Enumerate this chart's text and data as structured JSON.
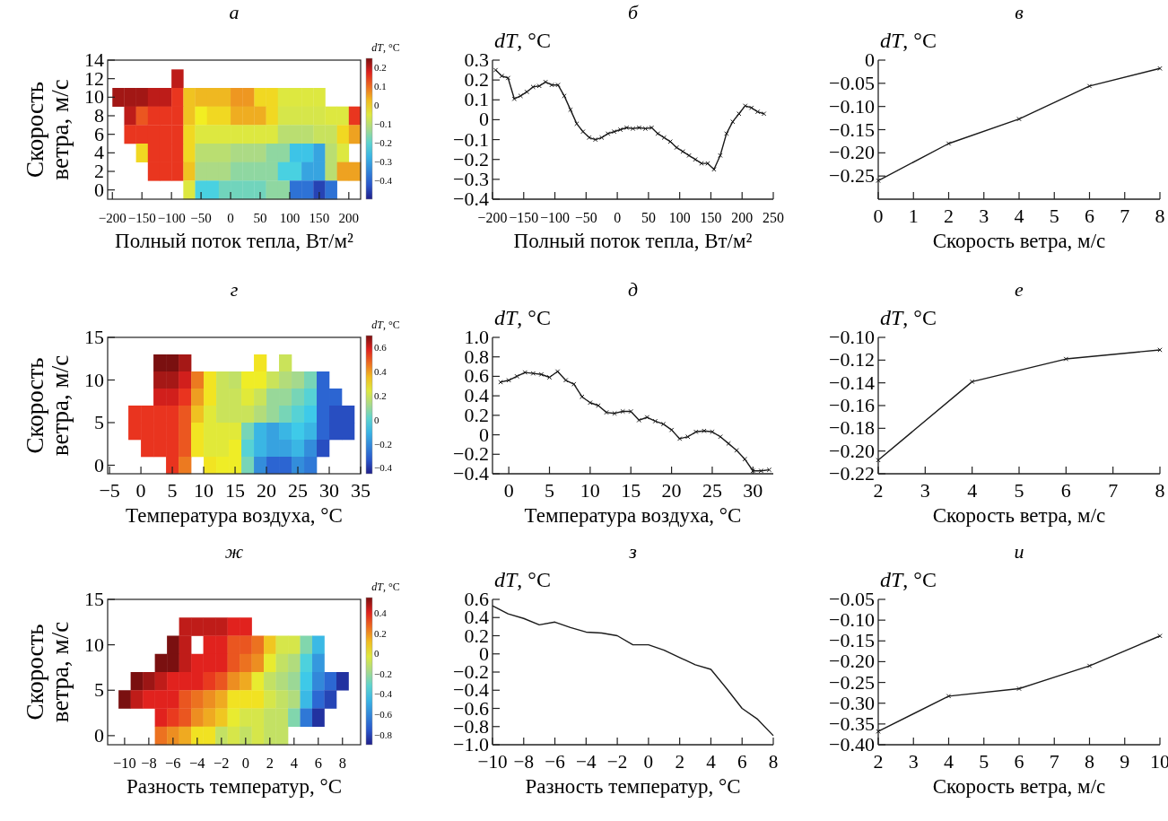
{
  "chart_data": [
    {
      "type": "heatmap",
      "title": "а",
      "xlabel": "Полный поток тепла, Вт/м²",
      "ylabel": "Скорость ветра, м/с",
      "clabel": "dT, °C",
      "x": [
        -190,
        -170,
        -150,
        -130,
        -110,
        -90,
        -70,
        -50,
        -30,
        -10,
        10,
        30,
        50,
        70,
        90,
        110,
        130,
        150,
        170,
        190,
        210
      ],
      "y": [
        12,
        10,
        8,
        6,
        4,
        2,
        0
      ],
      "cells": [
        [
          null,
          null,
          null,
          null,
          null,
          0.2,
          null,
          null,
          null,
          null,
          null,
          null,
          null,
          null,
          null,
          null,
          null,
          null,
          null,
          null,
          null
        ],
        [
          0.22,
          0.22,
          0.22,
          0.2,
          0.2,
          0.15,
          0.02,
          0.03,
          0.03,
          0.03,
          0.06,
          0.06,
          0,
          0,
          -0.05,
          -0.05,
          -0.05,
          -0.05,
          null,
          null,
          null
        ],
        [
          null,
          0.2,
          0.12,
          0.15,
          0.15,
          0.15,
          0.02,
          -0.02,
          0,
          0,
          0.04,
          0.04,
          0.04,
          0,
          -0.06,
          -0.06,
          -0.06,
          -0.06,
          -0.05,
          -0.05,
          0.15
        ],
        [
          null,
          0.15,
          0.15,
          0.15,
          0.15,
          0.15,
          0,
          -0.05,
          -0.05,
          -0.05,
          -0.05,
          -0.05,
          -0.05,
          -0.05,
          -0.1,
          -0.1,
          -0.1,
          -0.08,
          -0.08,
          0,
          0.05
        ],
        [
          null,
          null,
          0,
          0.15,
          0.15,
          0.15,
          0,
          -0.1,
          -0.1,
          -0.1,
          -0.12,
          -0.12,
          -0.12,
          -0.15,
          -0.15,
          -0.25,
          -0.25,
          -0.3,
          -0.1,
          -0.05,
          null
        ],
        [
          null,
          null,
          null,
          0.15,
          0.15,
          0.15,
          0.02,
          -0.12,
          -0.12,
          -0.12,
          -0.15,
          -0.15,
          -0.15,
          -0.15,
          -0.22,
          -0.22,
          -0.3,
          -0.3,
          -0.1,
          0.05,
          0.05
        ],
        [
          null,
          null,
          null,
          null,
          null,
          null,
          -0.05,
          -0.22,
          -0.22,
          -0.18,
          -0.18,
          -0.18,
          -0.18,
          -0.15,
          -0.15,
          -0.38,
          -0.38,
          -0.45,
          -0.38,
          null,
          null
        ]
      ],
      "xlim": [
        -208,
        220
      ],
      "xticks": [
        {
          "value": -200,
          "label": "−200"
        },
        {
          "value": -150,
          "label": "−150"
        },
        {
          "value": -100,
          "label": "−100"
        },
        {
          "value": -50,
          "label": "−50"
        },
        0,
        50,
        100,
        150,
        200
      ],
      "ylim": [
        -1,
        14
      ],
      "yticks": [
        0,
        2,
        4,
        6,
        8,
        10,
        12,
        14
      ],
      "clim": [
        -0.5,
        0.25
      ],
      "cticks": [
        0.2,
        0.1,
        0,
        {
          "value": -0.1,
          "label": "−0.1"
        },
        {
          "value": -0.2,
          "label": "−0.2"
        },
        {
          "value": -0.3,
          "label": "−0.3"
        },
        {
          "value": -0.4,
          "label": "−0.4"
        }
      ]
    },
    {
      "type": "line",
      "title": "б",
      "xlabel": "Полный поток тепла, Вт/м²",
      "ylabel": "dT, °C",
      "marker": "cross",
      "line_style": "solid",
      "x": [
        -195,
        -185,
        -175,
        -165,
        -155,
        -145,
        -135,
        -125,
        -115,
        -105,
        -95,
        -85,
        -75,
        -65,
        -55,
        -45,
        -35,
        -25,
        -15,
        -5,
        5,
        15,
        25,
        35,
        45,
        55,
        65,
        75,
        85,
        95,
        105,
        115,
        125,
        135,
        145,
        155,
        165,
        175,
        185,
        195,
        205,
        215,
        225,
        235
      ],
      "series": [
        {
          "color": "#1a1a1a",
          "values": [
            0.25,
            0.22,
            0.21,
            0.105,
            0.12,
            0.14,
            0.165,
            0.17,
            0.19,
            0.175,
            0.175,
            0.12,
            0.05,
            -0.02,
            -0.06,
            -0.09,
            -0.1,
            -0.09,
            -0.07,
            -0.06,
            -0.05,
            -0.04,
            -0.045,
            -0.04,
            -0.045,
            -0.04,
            -0.07,
            -0.09,
            -0.11,
            -0.14,
            -0.16,
            -0.18,
            -0.2,
            -0.22,
            -0.22,
            -0.25,
            -0.18,
            -0.07,
            -0.01,
            0.03,
            0.07,
            0.06,
            0.04,
            0.03
          ]
        }
      ],
      "xlim": [
        -200,
        250
      ],
      "xticks": [
        {
          "value": -200,
          "label": "−200"
        },
        {
          "value": -150,
          "label": "−150"
        },
        {
          "value": -100,
          "label": "−100"
        },
        {
          "value": -50,
          "label": "−50"
        },
        0,
        50,
        100,
        150,
        200,
        250
      ],
      "ylim": [
        -0.4,
        0.3
      ],
      "yticks": [
        {
          "value": -0.4,
          "label": "−0.4"
        },
        {
          "value": -0.3,
          "label": "−0.3"
        },
        {
          "value": -0.2,
          "label": "−0.2"
        },
        {
          "value": -0.1,
          "label": "−0.1"
        },
        0,
        0.1,
        0.2,
        0.3
      ]
    },
    {
      "type": "line",
      "title": "в",
      "xlabel": "Скорость ветра, м/с",
      "ylabel": "dT, °C",
      "marker": "cross",
      "line_style": "solid",
      "x": [
        0,
        2,
        4,
        6,
        8
      ],
      "series": [
        {
          "color": "#1a1a1a",
          "values": [
            -0.26,
            -0.18,
            -0.127,
            -0.056,
            -0.018
          ]
        }
      ],
      "xlim": [
        0,
        8
      ],
      "xticks": [
        0,
        1,
        2,
        3,
        4,
        5,
        6,
        7,
        8
      ],
      "ylim": [
        -0.3,
        0
      ],
      "yticks": [
        {
          "value": -0.25,
          "label": "−0.25"
        },
        {
          "value": -0.2,
          "label": "−0.20"
        },
        {
          "value": -0.15,
          "label": "−0.15"
        },
        {
          "value": -0.1,
          "label": "−0.10"
        },
        {
          "value": -0.05,
          "label": "−0.05"
        },
        0
      ]
    },
    {
      "type": "heatmap",
      "title": "г",
      "xlabel": "Температура воздуха, °C",
      "ylabel": "Скорость ветра, м/с",
      "clabel": "dT, °C",
      "x": [
        -1,
        1,
        3,
        5,
        7,
        9,
        11,
        13,
        15,
        17,
        19,
        21,
        23,
        25,
        27,
        29,
        31,
        33
      ],
      "y": [
        12,
        10,
        8,
        6,
        4,
        2,
        0
      ],
      "cells": [
        [
          null,
          null,
          0.7,
          0.7,
          0.65,
          null,
          null,
          null,
          null,
          null,
          0.3,
          null,
          0.2,
          null,
          null,
          null,
          null,
          null
        ],
        [
          null,
          null,
          0.65,
          0.65,
          0.6,
          0.45,
          0.3,
          0.2,
          0.18,
          0.28,
          0.28,
          0.2,
          0.15,
          0.12,
          0.05,
          -0.3,
          null,
          null
        ],
        [
          null,
          null,
          0.6,
          0.6,
          0.55,
          0.4,
          0.3,
          0.2,
          0.2,
          0.25,
          0.2,
          0.1,
          0.1,
          0.05,
          0,
          -0.3,
          -0.3,
          null
        ],
        [
          0.55,
          0.55,
          0.55,
          0.55,
          0.5,
          0.35,
          0.25,
          0.2,
          0.2,
          0.2,
          0.15,
          0.1,
          0.05,
          0,
          -0.05,
          -0.3,
          -0.35,
          -0.35
        ],
        [
          0.55,
          0.55,
          0.55,
          0.55,
          0.5,
          0.3,
          0.25,
          0.25,
          0.25,
          0.05,
          -0.1,
          -0.15,
          -0.1,
          -0.05,
          -0.1,
          -0.3,
          -0.35,
          -0.35
        ],
        [
          null,
          0.55,
          0.55,
          0.55,
          0.5,
          0.3,
          0.25,
          0.25,
          0.28,
          0,
          -0.1,
          -0.15,
          -0.15,
          -0.1,
          -0.2,
          -0.35,
          null,
          null
        ],
        [
          null,
          null,
          null,
          0.55,
          0.45,
          null,
          0.3,
          0.28,
          0.28,
          0.05,
          -0.2,
          -0.3,
          -0.3,
          -0.2,
          -0.25,
          null,
          null,
          null
        ]
      ],
      "xlim": [
        -5.3,
        35
      ],
      "xticks": [
        {
          "value": -5,
          "label": "−5"
        },
        0,
        5,
        10,
        15,
        20,
        25,
        30,
        35
      ],
      "ylim": [
        -1,
        15
      ],
      "yticks": [
        0,
        5,
        10,
        15
      ],
      "clim": [
        -0.45,
        0.7
      ],
      "cticks": [
        0.6,
        0.4,
        0.2,
        0,
        {
          "value": -0.2,
          "label": "−0.2"
        },
        {
          "value": -0.4,
          "label": "−0.4"
        }
      ]
    },
    {
      "type": "line",
      "title": "д",
      "xlabel": "Температура воздуха, °C",
      "ylabel": "dT, °C",
      "marker": "cross",
      "line_style": "solid",
      "x": [
        -1,
        0,
        1,
        2,
        3,
        4,
        5,
        6,
        7,
        8,
        9,
        10,
        11,
        12,
        13,
        14,
        15,
        16,
        17,
        18,
        19,
        20,
        21,
        22,
        23,
        24,
        25,
        26,
        27,
        28,
        29,
        30,
        31,
        32
      ],
      "series": [
        {
          "color": "#1a1a1a",
          "values": [
            0.54,
            0.56,
            0.6,
            0.64,
            0.63,
            0.62,
            0.59,
            0.65,
            0.56,
            0.52,
            0.39,
            0.33,
            0.3,
            0.23,
            0.22,
            0.24,
            0.24,
            0.15,
            0.18,
            0.14,
            0.11,
            0.05,
            -0.04,
            -0.02,
            0.03,
            0.04,
            0.03,
            -0.02,
            -0.09,
            -0.16,
            -0.25,
            -0.37,
            -0.37,
            -0.36
          ]
        }
      ],
      "xlim": [
        -2,
        32.5
      ],
      "xticks": [
        0,
        5,
        10,
        15,
        20,
        25,
        30
      ],
      "ylim": [
        -0.4,
        1.0
      ],
      "yticks": [
        {
          "value": -0.4,
          "label": "−0.4"
        },
        {
          "value": -0.2,
          "label": "−0.2"
        },
        0,
        0.2,
        0.4,
        0.6,
        0.8,
        {
          "value": 1,
          "label": "1.0"
        }
      ]
    },
    {
      "type": "line",
      "title": "е",
      "xlabel": "Скорость ветра, м/с",
      "ylabel": "dT, °C",
      "marker": "cross",
      "line_style": "solid",
      "x": [
        2,
        4,
        6,
        8
      ],
      "series": [
        {
          "color": "#1a1a1a",
          "values": [
            -0.208,
            -0.139,
            -0.119,
            -0.111
          ]
        }
      ],
      "xlim": [
        2,
        8
      ],
      "xticks": [
        2,
        3,
        4,
        5,
        6,
        7,
        8
      ],
      "ylim": [
        -0.22,
        -0.1
      ],
      "yticks": [
        {
          "value": -0.22,
          "label": "−0.22"
        },
        {
          "value": -0.2,
          "label": "−0.20"
        },
        {
          "value": -0.18,
          "label": "−0.18"
        },
        {
          "value": -0.16,
          "label": "−0.16"
        },
        {
          "value": -0.14,
          "label": "−0.14"
        },
        {
          "value": -0.12,
          "label": "−0.12"
        },
        {
          "value": -0.1,
          "label": "−0.10"
        }
      ]
    },
    {
      "type": "heatmap",
      "title": "ж",
      "xlabel": "Разность температур, °C",
      "ylabel": "Скорость ветра, м/с",
      "clabel": "dT, °C",
      "x": [
        -10,
        -9,
        -8,
        -7,
        -6,
        -5,
        -4,
        -3,
        -2,
        -1,
        0,
        1,
        2,
        3,
        4,
        5,
        6,
        7,
        8
      ],
      "y": [
        12,
        10,
        8,
        6,
        4,
        2,
        0
      ],
      "cells": [
        [
          null,
          null,
          null,
          null,
          null,
          0.45,
          0.45,
          0.45,
          0.45,
          0.4,
          0.4,
          null,
          null,
          null,
          null,
          null,
          null,
          null,
          null
        ],
        [
          null,
          null,
          null,
          null,
          0.6,
          0.45,
          null,
          0.4,
          0.4,
          0.3,
          0.3,
          0.25,
          0.1,
          -0.05,
          -0.05,
          -0.25,
          -0.45,
          null,
          null
        ],
        [
          null,
          null,
          null,
          0.55,
          0.55,
          0.45,
          0.4,
          0.4,
          0.4,
          0.3,
          0.25,
          0.2,
          0,
          -0.1,
          -0.15,
          -0.35,
          -0.55,
          null,
          null
        ],
        [
          null,
          0.55,
          0.5,
          0.45,
          0.4,
          0.4,
          0.4,
          0.35,
          0.3,
          0.2,
          0.15,
          0,
          -0.1,
          -0.15,
          -0.2,
          -0.4,
          -0.6,
          -0.7,
          -0.85
        ],
        [
          0.6,
          0.45,
          0.4,
          0.4,
          0.4,
          0.3,
          0.25,
          0.2,
          0.15,
          0.05,
          0.05,
          0.05,
          -0.05,
          -0.1,
          -0.15,
          -0.45,
          -0.7,
          -0.8,
          null
        ],
        [
          null,
          null,
          null,
          0.4,
          0.35,
          0.3,
          0.2,
          0.15,
          0.1,
          0,
          -0.05,
          -0.05,
          -0.1,
          -0.1,
          -0.25,
          -0.65,
          -0.85,
          null,
          null
        ],
        [
          null,
          null,
          null,
          0.25,
          0.2,
          0.15,
          0.05,
          0.05,
          -0.1,
          -0.05,
          -0.1,
          -0.05,
          -0.1,
          -0.1,
          null,
          null,
          null,
          null,
          null
        ]
      ],
      "xlim": [
        -11.4,
        9.5
      ],
      "xticks": [
        {
          "value": -10,
          "label": "−10"
        },
        {
          "value": -8,
          "label": "−8"
        },
        {
          "value": -6,
          "label": "−6"
        },
        {
          "value": -4,
          "label": "−4"
        },
        {
          "value": -2,
          "label": "−2"
        },
        0,
        2,
        4,
        6,
        8
      ],
      "ylim": [
        -1,
        15
      ],
      "yticks": [
        0,
        5,
        10,
        15
      ],
      "clim": [
        -0.9,
        0.55
      ],
      "cticks": [
        0.4,
        0.2,
        0,
        {
          "value": -0.2,
          "label": "−0.2"
        },
        {
          "value": -0.4,
          "label": "−0.4"
        },
        {
          "value": -0.6,
          "label": "−0.6"
        },
        {
          "value": -0.8,
          "label": "−0.8"
        }
      ]
    },
    {
      "type": "line",
      "title": "з",
      "xlabel": "Разность температур, °C",
      "ylabel": "dT, °C",
      "marker": "none",
      "line_style": "solid",
      "x": [
        -10,
        -9,
        -8,
        -7,
        -6,
        -5,
        -4,
        -3,
        -2,
        -1,
        0,
        1,
        2,
        3,
        4,
        5,
        6,
        7,
        8
      ],
      "series": [
        {
          "color": "#1a1a1a",
          "values": [
            0.53,
            0.44,
            0.39,
            0.32,
            0.35,
            0.29,
            0.24,
            0.23,
            0.2,
            0.1,
            0.1,
            0.04,
            -0.04,
            -0.12,
            -0.17,
            -0.38,
            -0.6,
            -0.72,
            -0.9
          ]
        }
      ],
      "xlim": [
        -10,
        8
      ],
      "xticks": [
        {
          "value": -10,
          "label": "−10"
        },
        {
          "value": -8,
          "label": "−8"
        },
        {
          "value": -6,
          "label": "−6"
        },
        {
          "value": -4,
          "label": "−4"
        },
        {
          "value": -2,
          "label": "−2"
        },
        0,
        2,
        4,
        6,
        8
      ],
      "ylim": [
        -1,
        0.6
      ],
      "yticks": [
        {
          "value": -1,
          "label": "−1.0"
        },
        {
          "value": -0.8,
          "label": "−0.8"
        },
        {
          "value": -0.6,
          "label": "−0.6"
        },
        {
          "value": -0.4,
          "label": "−0.4"
        },
        {
          "value": -0.2,
          "label": "−0.2"
        },
        0,
        0.2,
        0.4,
        0.6
      ]
    },
    {
      "type": "line",
      "title": "и",
      "xlabel": "Скорость ветра, м/с",
      "ylabel": "dT, °C",
      "marker": "cross",
      "line_style": "solid",
      "x": [
        2,
        4,
        6,
        8,
        10
      ],
      "series": [
        {
          "color": "#1a1a1a",
          "values": [
            -0.368,
            -0.283,
            -0.265,
            -0.21,
            -0.138
          ]
        }
      ],
      "xlim": [
        2,
        10
      ],
      "xticks": [
        2,
        3,
        4,
        5,
        6,
        7,
        8,
        9,
        10
      ],
      "ylim": [
        -0.4,
        -0.05
      ],
      "yticks": [
        {
          "value": -0.4,
          "label": "−0.40"
        },
        {
          "value": -0.35,
          "label": "−0.35"
        },
        {
          "value": -0.3,
          "label": "−0.30"
        },
        {
          "value": -0.25,
          "label": "−0.25"
        },
        {
          "value": -0.2,
          "label": "−0.20"
        },
        {
          "value": -0.15,
          "label": "−0.15"
        },
        {
          "value": -0.1,
          "label": "−0.10"
        },
        {
          "value": -0.05,
          "label": "−0.05"
        }
      ]
    }
  ]
}
